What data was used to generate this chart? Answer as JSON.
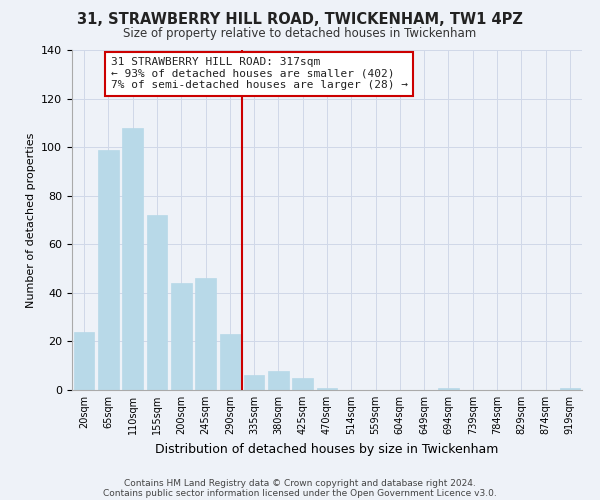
{
  "title": "31, STRAWBERRY HILL ROAD, TWICKENHAM, TW1 4PZ",
  "subtitle": "Size of property relative to detached houses in Twickenham",
  "xlabel": "Distribution of detached houses by size in Twickenham",
  "ylabel": "Number of detached properties",
  "footer_line1": "Contains HM Land Registry data © Crown copyright and database right 2024.",
  "footer_line2": "Contains public sector information licensed under the Open Government Licence v3.0.",
  "bar_labels": [
    "20sqm",
    "65sqm",
    "110sqm",
    "155sqm",
    "200sqm",
    "245sqm",
    "290sqm",
    "335sqm",
    "380sqm",
    "425sqm",
    "470sqm",
    "514sqm",
    "559sqm",
    "604sqm",
    "649sqm",
    "694sqm",
    "739sqm",
    "784sqm",
    "829sqm",
    "874sqm",
    "919sqm"
  ],
  "bar_values": [
    24,
    99,
    108,
    72,
    44,
    46,
    23,
    6,
    8,
    5,
    1,
    0,
    0,
    0,
    0,
    1,
    0,
    0,
    0,
    0,
    1
  ],
  "bar_color": "#b8d9e8",
  "bar_edge_color": "#b8d9e8",
  "grid_color": "#d0d8e8",
  "background_color": "#eef2f8",
  "vline_color": "#cc0000",
  "annotation_text": "31 STRAWBERRY HILL ROAD: 317sqm\n← 93% of detached houses are smaller (402)\n7% of semi-detached houses are larger (28) →",
  "annotation_box_color": "#ffffff",
  "annotation_box_edge": "#cc0000",
  "ylim": [
    0,
    140
  ],
  "yticks": [
    0,
    20,
    40,
    60,
    80,
    100,
    120,
    140
  ]
}
